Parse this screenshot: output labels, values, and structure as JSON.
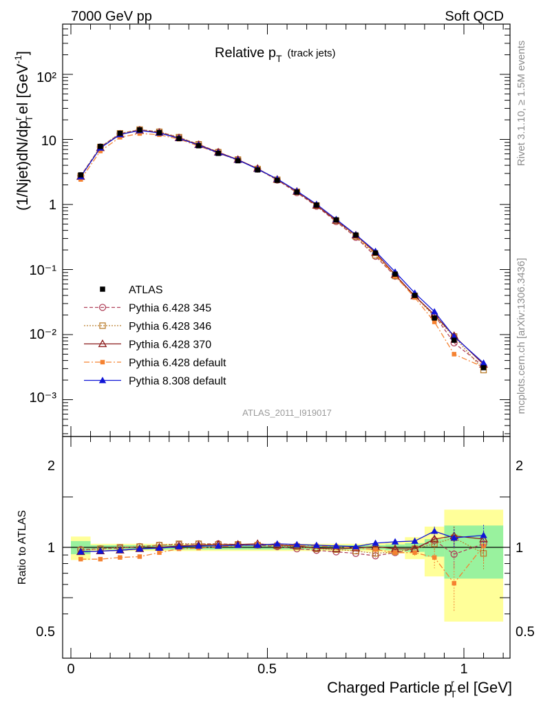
{
  "header": {
    "left": "7000 GeV pp",
    "right": "Soft QCD"
  },
  "side_labels": {
    "rivet": "Rivet 3.1.10, ≥ 1.5M events",
    "mcplots": "mcplots.cern.ch [arXiv:1306.3436]"
  },
  "chart_data": {
    "type": "line",
    "title": "Relative p",
    "title_sub": "T",
    "title_suffix": "(track jets)",
    "analysis_label": "ATLAS_2011_I919017",
    "xlabel": "Charged Particle p",
    "xlabel_sup": "r",
    "xlabel_sub": "T",
    "xlabel_suffix": "el [GeV]",
    "ylabel": "(1/Njet)dN/dp",
    "ylabel_sup": "r",
    "ylabel_sub": "T",
    "ylabel_suffix": "el [GeV",
    "ylabel_exp": "-1",
    "ratio_ylabel": "Ratio to ATLAS",
    "xlim": [
      -0.03,
      1.1
    ],
    "ylim": [
      0.0003,
      700
    ],
    "yscale": "log",
    "ratio_ylim": [
      0.35,
      2.3
    ],
    "x_ticks": [
      "0",
      "0.5",
      "1"
    ],
    "y_ticks": [
      "10⁻³",
      "10⁻²",
      "10⁻¹",
      "1",
      "10",
      "10²"
    ],
    "ratio_ticks": [
      "0.5",
      "1",
      "2"
    ],
    "legend_position": "lower-left",
    "x": [
      0.025,
      0.075,
      0.125,
      0.175,
      0.225,
      0.275,
      0.325,
      0.375,
      0.425,
      0.475,
      0.525,
      0.575,
      0.625,
      0.675,
      0.725,
      0.775,
      0.825,
      0.875,
      0.925,
      0.975,
      1.05
    ],
    "data": {
      "name": "ATLAS",
      "values": [
        2.85,
        7.8,
        12.4,
        14.0,
        12.7,
        10.3,
        8.0,
        6.1,
        4.7,
        3.4,
        2.35,
        1.55,
        0.98,
        0.58,
        0.34,
        0.18,
        0.085,
        0.04,
        0.018,
        0.0082,
        0.0031
      ]
    },
    "band_edges": [
      0.0,
      0.05,
      0.1,
      0.15,
      0.2,
      0.25,
      0.3,
      0.35,
      0.4,
      0.45,
      0.5,
      0.55,
      0.6,
      0.65,
      0.7,
      0.75,
      0.8,
      0.85,
      0.9,
      0.95,
      1.0,
      1.1
    ],
    "band_green": [
      0.09,
      0.03,
      0.03,
      0.03,
      0.03,
      0.03,
      0.03,
      0.03,
      0.03,
      0.03,
      0.03,
      0.03,
      0.03,
      0.03,
      0.03,
      0.03,
      0.04,
      0.06,
      0.12,
      0.35,
      0.35
    ],
    "band_yellow": [
      0.16,
      0.05,
      0.05,
      0.05,
      0.05,
      0.05,
      0.05,
      0.05,
      0.05,
      0.05,
      0.05,
      0.05,
      0.05,
      0.05,
      0.05,
      0.06,
      0.08,
      0.15,
      0.33,
      0.68,
      0.68
    ],
    "series": [
      {
        "name": "Pythia 6.428 345",
        "color": "#b0415a",
        "marker": "circle-open",
        "dash": "5,3",
        "ratio": [
          0.97,
          0.98,
          0.99,
          1.01,
          1.03,
          1.04,
          1.05,
          1.05,
          1.04,
          1.03,
          1.01,
          0.98,
          0.96,
          0.94,
          0.92,
          0.89,
          0.93,
          0.98,
          1.1,
          0.91,
          1.05
        ],
        "err": [
          0.01,
          0.01,
          0.01,
          0.01,
          0.01,
          0.01,
          0.01,
          0.01,
          0.01,
          0.01,
          0.01,
          0.01,
          0.01,
          0.01,
          0.01,
          0.02,
          0.03,
          0.05,
          0.09,
          0.17,
          0.2
        ]
      },
      {
        "name": "Pythia 6.428 346",
        "color": "#b97d2c",
        "marker": "square-open",
        "dash": "2,2",
        "ratio": [
          0.96,
          0.98,
          1.0,
          1.01,
          1.03,
          1.05,
          1.05,
          1.04,
          1.04,
          1.03,
          1.02,
          1.01,
          0.98,
          0.97,
          0.95,
          0.92,
          0.94,
          0.98,
          1.05,
          1.14,
          0.92
        ],
        "err": [
          0.01,
          0.01,
          0.01,
          0.01,
          0.01,
          0.01,
          0.01,
          0.01,
          0.01,
          0.01,
          0.01,
          0.01,
          0.01,
          0.01,
          0.01,
          0.02,
          0.03,
          0.05,
          0.09,
          0.15,
          0.18
        ]
      },
      {
        "name": "Pythia 6.428 370",
        "color": "#8b1a1a",
        "marker": "triangle-open",
        "dash": "",
        "ratio": [
          0.94,
          0.95,
          0.96,
          0.98,
          1.0,
          1.02,
          1.03,
          1.04,
          1.04,
          1.05,
          1.03,
          1.02,
          0.99,
          0.98,
          0.99,
          1.01,
          0.98,
          0.98,
          1.12,
          1.17,
          1.12
        ],
        "err": [
          0.01,
          0.01,
          0.01,
          0.01,
          0.01,
          0.01,
          0.01,
          0.01,
          0.01,
          0.01,
          0.01,
          0.01,
          0.01,
          0.01,
          0.01,
          0.02,
          0.03,
          0.05,
          0.1,
          0.16,
          0.19
        ]
      },
      {
        "name": "Pythia 6.428 default",
        "color": "#f58231",
        "marker": "square-filled",
        "dash": "8,3,2,3",
        "ratio": [
          0.85,
          0.85,
          0.87,
          0.88,
          0.93,
          0.98,
          0.99,
          1.01,
          1.02,
          1.04,
          1.04,
          1.03,
          1.02,
          1.01,
          0.99,
          0.97,
          0.93,
          0.93,
          0.87,
          0.61,
          1.02
        ],
        "err": [
          0.01,
          0.01,
          0.01,
          0.01,
          0.01,
          0.01,
          0.01,
          0.01,
          0.01,
          0.01,
          0.01,
          0.01,
          0.01,
          0.01,
          0.01,
          0.02,
          0.03,
          0.05,
          0.12,
          0.2,
          0.22
        ]
      },
      {
        "name": "Pythia 8.308 default",
        "color": "#0f14d6",
        "marker": "triangle-filled",
        "dash": "",
        "ratio": [
          0.94,
          0.95,
          0.96,
          0.98,
          0.99,
          1.01,
          1.02,
          1.02,
          1.03,
          1.03,
          1.05,
          1.04,
          1.03,
          1.02,
          1.01,
          1.06,
          1.08,
          1.09,
          1.25,
          1.14,
          1.18
        ],
        "err": [
          0.01,
          0.01,
          0.01,
          0.01,
          0.01,
          0.01,
          0.01,
          0.01,
          0.01,
          0.01,
          0.01,
          0.01,
          0.01,
          0.01,
          0.01,
          0.02,
          0.03,
          0.05,
          0.08,
          0.14,
          0.18
        ]
      }
    ]
  }
}
